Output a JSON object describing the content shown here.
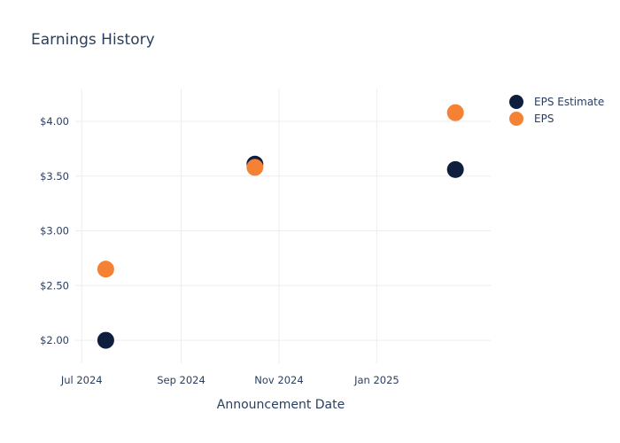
{
  "chart_data": {
    "type": "scatter",
    "title": "Earnings History",
    "xlabel": "Announcement Date",
    "ylabel": "",
    "x_ticks": [
      {
        "date": "2024-07-01",
        "label": "Jul 2024"
      },
      {
        "date": "2024-09-01",
        "label": "Sep 2024"
      },
      {
        "date": "2024-11-01",
        "label": "Nov 2024"
      },
      {
        "date": "2025-01-01",
        "label": "Jan 2025"
      }
    ],
    "xlim": [
      "2024-06-27",
      "2025-03-13"
    ],
    "y_ticks": [
      {
        "value": 2.0,
        "label": "$2.00"
      },
      {
        "value": 2.5,
        "label": "$2.50"
      },
      {
        "value": 3.0,
        "label": "$3.00"
      },
      {
        "value": 3.5,
        "label": "$3.50"
      },
      {
        "value": 4.0,
        "label": "$4.00"
      }
    ],
    "ylim": [
      1.79,
      4.3
    ],
    "grid": true,
    "legend_position": "top-right",
    "series": [
      {
        "name": "EPS Estimate",
        "color": "#0d1f3d",
        "points": [
          {
            "x": "2024-07-16",
            "y": 2.0
          },
          {
            "x": "2024-10-17",
            "y": 3.61
          },
          {
            "x": "2025-02-19",
            "y": 3.56
          }
        ]
      },
      {
        "name": "EPS",
        "color": "#f58134",
        "points": [
          {
            "x": "2024-07-16",
            "y": 2.65
          },
          {
            "x": "2024-10-17",
            "y": 3.58
          },
          {
            "x": "2025-02-19",
            "y": 4.08
          }
        ]
      }
    ]
  }
}
